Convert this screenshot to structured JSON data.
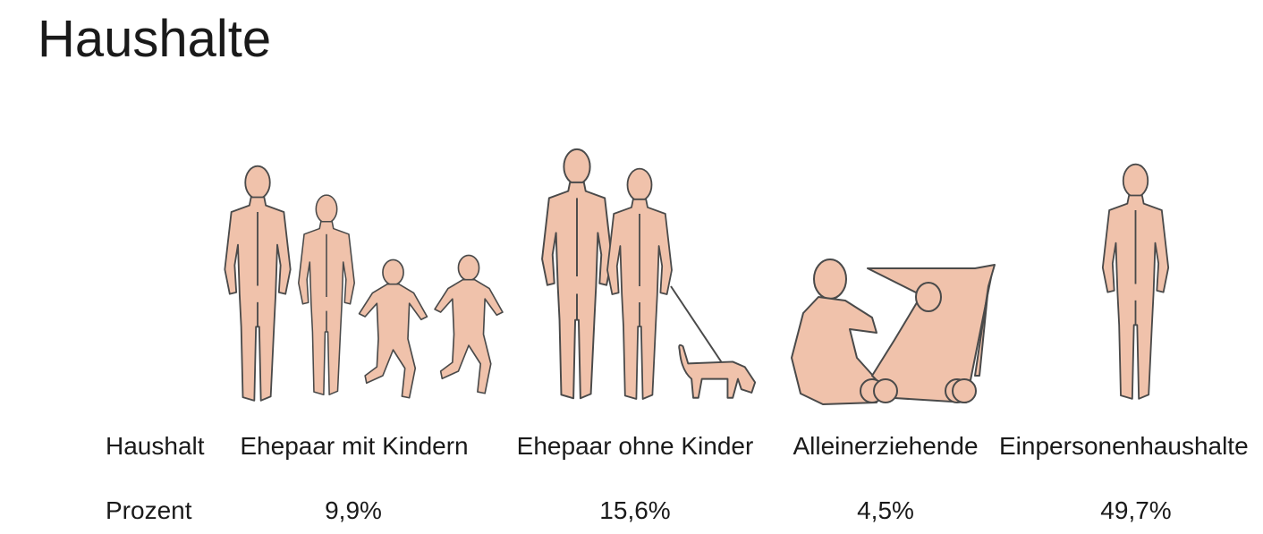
{
  "header": {
    "title": "Haushalte"
  },
  "table": {
    "rows": [
      [
        "Haushalt",
        "Ehepaar mit Kindern",
        "Ehepaar ohne Kinder",
        "Alleinerziehende",
        "Einpersonenhaushalte"
      ],
      [
        "Prozent",
        "9,9%",
        "15,6%",
        "4,5%",
        "49,7%"
      ]
    ]
  }
}
